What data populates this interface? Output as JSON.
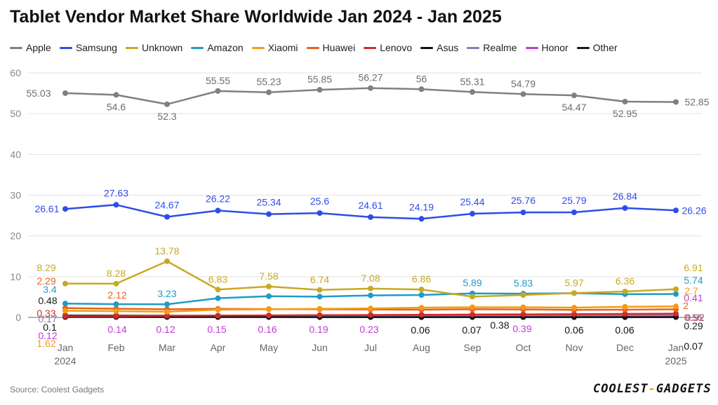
{
  "chart_data": {
    "type": "line",
    "title": "Tablet Vendor Market Share Worldwide Jan 2024 - Jan 2025",
    "categories": [
      "Jan\n2024",
      "Feb",
      "Mar",
      "Apr",
      "May",
      "Jun",
      "Jul",
      "Aug",
      "Sep",
      "Oct",
      "Nov",
      "Dec",
      "Jan\n2025"
    ],
    "ylim": [
      0,
      60
    ],
    "yticks": [
      0,
      10,
      20,
      30,
      40,
      50,
      60
    ],
    "grid": true,
    "legend_position": "top",
    "series": [
      {
        "name": "Apple",
        "color": "#808080",
        "values": [
          55.03,
          54.6,
          52.3,
          55.55,
          55.23,
          55.85,
          56.27,
          56,
          55.31,
          54.79,
          54.47,
          52.95,
          52.85
        ],
        "labels": {
          "0": "55.03",
          "1": "54.6",
          "2": "52.3",
          "3": "55.55",
          "4": "55.23",
          "5": "55.85",
          "6": "56.27",
          "7": "56",
          "8": "55.31",
          "9": "54.79",
          "10": "54.47",
          "11": "52.95",
          "12": "52.85"
        }
      },
      {
        "name": "Samsung",
        "color": "#2e4de8",
        "values": [
          26.61,
          27.63,
          24.67,
          26.22,
          25.34,
          25.6,
          24.61,
          24.19,
          25.44,
          25.76,
          25.79,
          26.84,
          26.26
        ],
        "labels": {
          "0": "26.61",
          "1": "27.63",
          "2": "24.67",
          "3": "26.22",
          "4": "25.34",
          "5": "25.6",
          "6": "24.61",
          "7": "24.19",
          "8": "25.44",
          "9": "25.76",
          "10": "25.79",
          "11": "26.84",
          "12": "26.26"
        }
      },
      {
        "name": "Unknown",
        "color": "#c9a923",
        "values": [
          8.29,
          8.28,
          13.78,
          6.83,
          7.58,
          6.74,
          7.08,
          6.86,
          5.1,
          5.5,
          5.97,
          6.36,
          6.91
        ],
        "labels": {
          "0": "8.29",
          "1": "8.28",
          "2": "13.78",
          "3": "6.83",
          "4": "7.58",
          "5": "6.74",
          "6": "7.08",
          "7": "6.86",
          "10": "5.97",
          "11": "6.36",
          "12": "6.91"
        }
      },
      {
        "name": "Amazon",
        "color": "#1f9bc8",
        "values": [
          3.4,
          3.25,
          3.23,
          4.7,
          5.2,
          5.1,
          5.4,
          5.5,
          5.89,
          5.83,
          5.95,
          5.7,
          5.74
        ],
        "labels": {
          "0": "3.4",
          "2": "3.23",
          "8": "5.89",
          "9": "5.83",
          "12": "5.74"
        }
      },
      {
        "name": "Xiaomi",
        "color": "#f39c12",
        "values": [
          1.62,
          1.55,
          1.4,
          1.9,
          2.0,
          2.1,
          2.2,
          2.4,
          2.5,
          2.5,
          2.4,
          2.6,
          2.7
        ],
        "labels": {
          "0": "1.62",
          "12": "2.7"
        }
      },
      {
        "name": "Huawei",
        "color": "#e8611a",
        "values": [
          2.29,
          2.12,
          2.0,
          2.1,
          2.05,
          2.0,
          1.95,
          1.9,
          2.0,
          1.95,
          1.85,
          1.9,
          2
        ],
        "labels": {
          "0": "2.29",
          "1": "2.12",
          "12": "2"
        }
      },
      {
        "name": "Lenovo",
        "color": "#d42a2a",
        "values": [
          0.33,
          0.35,
          0.4,
          0.45,
          0.5,
          0.55,
          0.6,
          0.65,
          0.7,
          0.75,
          0.8,
          0.85,
          0.92
        ],
        "labels": {
          "0": "0.33",
          "12": "0.92"
        }
      },
      {
        "name": "Asus",
        "color": "#111111",
        "values": [
          0.1,
          0.1,
          0.09,
          0.08,
          0.08,
          0.07,
          0.07,
          0.06,
          0.07,
          0.07,
          0.06,
          0.06,
          0.07
        ],
        "labels": {
          "0": "0.1",
          "7": "0.06",
          "8": "0.07",
          "10": "0.06",
          "11": "0.06",
          "12": "0.07"
        }
      },
      {
        "name": "Realme",
        "color": "#8a7fb0",
        "values": [
          0.17,
          0.2,
          0.22,
          0.25,
          0.28,
          0.3,
          0.33,
          0.36,
          0.4,
          0.42,
          0.45,
          0.5,
          0.55
        ],
        "labels": {
          "0": "0.17",
          "12": "0.55"
        }
      },
      {
        "name": "Honor",
        "color": "#c23ad8",
        "values": [
          0.12,
          0.14,
          0.12,
          0.15,
          0.16,
          0.19,
          0.23,
          0.28,
          0.33,
          0.39,
          0.39,
          0.4,
          0.41
        ],
        "labels": {
          "0": "0.12",
          "1": "0.14",
          "2": "0.12",
          "3": "0.15",
          "4": "0.16",
          "5": "0.19",
          "6": "0.23",
          "9": "0.39",
          "12": "0.41"
        }
      },
      {
        "name": "Other",
        "color": "#1a1a1a",
        "values": [
          0.48,
          0.45,
          0.42,
          0.4,
          0.4,
          0.38,
          0.38,
          0.38,
          0.38,
          0.38,
          0.35,
          0.32,
          0.29
        ],
        "labels": {
          "0": "0.48",
          "9": "0.38",
          "12": "0.29"
        }
      }
    ]
  },
  "source": "Source: Coolest Gadgets",
  "logo": {
    "left": "COOLEST",
    "dash": "-",
    "right": "GADGETS"
  }
}
